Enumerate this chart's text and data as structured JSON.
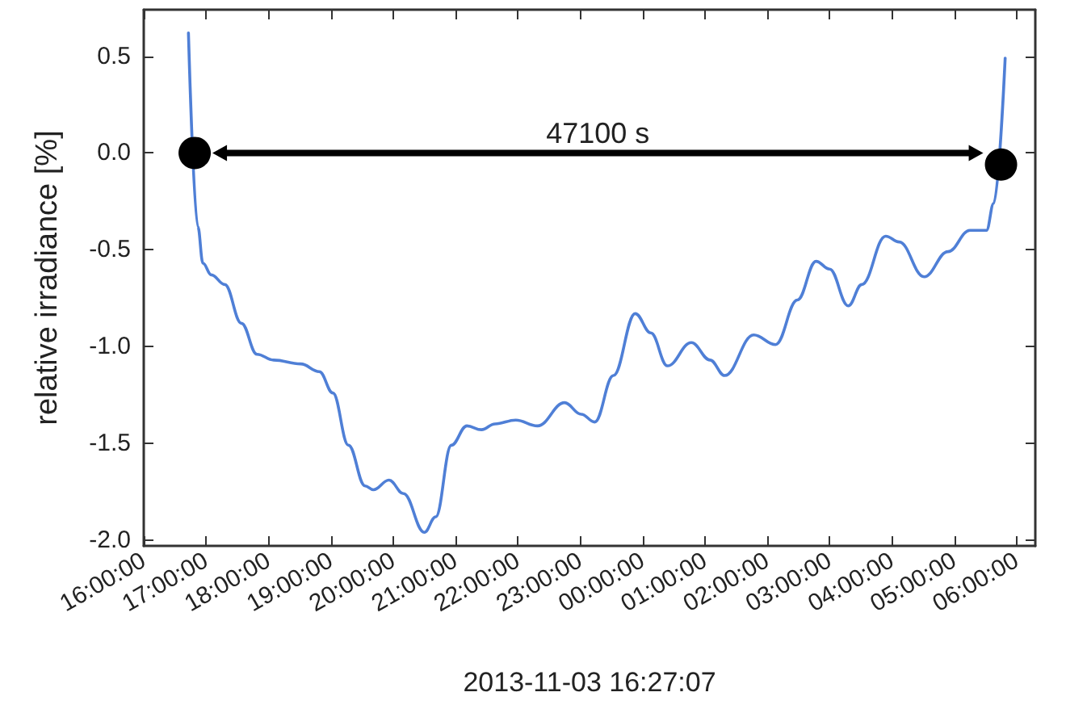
{
  "chart_data": {
    "type": "line",
    "xlabel": "2013-11-03 16:27:07",
    "ylabel": "relative irradiance [%]",
    "xlim": [
      "2013-11-03T16:00",
      "2013-11-04T06:18"
    ],
    "ylim": [
      -2.03,
      0.74
    ],
    "xticks": [
      {
        "value": "2013-11-03T16:00",
        "label": "16:00:00"
      },
      {
        "value": "2013-11-03T17:00",
        "label": "17:00:00"
      },
      {
        "value": "2013-11-03T18:00",
        "label": "18:00:00"
      },
      {
        "value": "2013-11-03T19:00",
        "label": "19:00:00"
      },
      {
        "value": "2013-11-03T20:00",
        "label": "20:00:00"
      },
      {
        "value": "2013-11-03T21:00",
        "label": "21:00:00"
      },
      {
        "value": "2013-11-03T22:00",
        "label": "22:00:00"
      },
      {
        "value": "2013-11-03T23:00",
        "label": "23:00:00"
      },
      {
        "value": "2013-11-04T00:00",
        "label": "00:00:00"
      },
      {
        "value": "2013-11-04T01:00",
        "label": "01:00:00"
      },
      {
        "value": "2013-11-04T02:00",
        "label": "02:00:00"
      },
      {
        "value": "2013-11-04T03:00",
        "label": "03:00:00"
      },
      {
        "value": "2013-11-04T04:00",
        "label": "04:00:00"
      },
      {
        "value": "2013-11-04T05:00",
        "label": "05:00:00"
      },
      {
        "value": "2013-11-04T06:00",
        "label": "06:00:00"
      }
    ],
    "yticks": [
      {
        "value": -2,
        "label": "-2.0"
      },
      {
        "value": -1.5,
        "label": "-1.5"
      },
      {
        "value": -1,
        "label": "-1.0"
      },
      {
        "value": -0.5,
        "label": "-0.5"
      },
      {
        "value": 0,
        "label": "0.0"
      },
      {
        "value": 0.5,
        "label": "0.5"
      }
    ],
    "series": [
      {
        "color": "#4f7fd6",
        "marker": "none",
        "line_style": "solid",
        "x": [
          "2013-11-03T16:43",
          "2013-11-03T16:52",
          "2013-11-03T16:57",
          "2013-11-03T17:05",
          "2013-11-03T17:18",
          "2013-11-03T17:34",
          "2013-11-03T17:49",
          "2013-11-03T18:05",
          "2013-11-03T18:31",
          "2013-11-03T18:49",
          "2013-11-03T19:02",
          "2013-11-03T19:17",
          "2013-11-03T19:33",
          "2013-11-03T19:41",
          "2013-11-03T19:56",
          "2013-11-03T20:10",
          "2013-11-03T20:30",
          "2013-11-03T20:41",
          "2013-11-03T20:56",
          "2013-11-03T21:11",
          "2013-11-03T21:25",
          "2013-11-03T21:38",
          "2013-11-03T21:58",
          "2013-11-03T22:19",
          "2013-11-03T22:45",
          "2013-11-03T23:01",
          "2013-11-03T23:14",
          "2013-11-03T23:32",
          "2013-11-03T23:53",
          "2013-11-04T00:08",
          "2013-11-04T00:24",
          "2013-11-04T00:47",
          "2013-11-04T01:05",
          "2013-11-04T01:19",
          "2013-11-04T01:47",
          "2013-11-04T02:08",
          "2013-11-04T02:29",
          "2013-11-04T02:47",
          "2013-11-04T03:00",
          "2013-11-04T03:18",
          "2013-11-04T03:31",
          "2013-11-04T03:54",
          "2013-11-04T04:07",
          "2013-11-04T04:31",
          "2013-11-04T04:54",
          "2013-11-04T05:15",
          "2013-11-04T05:31",
          "2013-11-04T05:38",
          "2013-11-04T05:49"
        ],
        "values": [
          0.62,
          -0.38,
          -0.57,
          -0.63,
          -0.68,
          -0.88,
          -1.04,
          -1.07,
          -1.09,
          -1.13,
          -1.24,
          -1.51,
          -1.72,
          -1.74,
          -1.69,
          -1.76,
          -1.96,
          -1.88,
          -1.51,
          -1.41,
          -1.43,
          -1.4,
          -1.38,
          -1.41,
          -1.29,
          -1.35,
          -1.39,
          -1.15,
          -0.83,
          -0.93,
          -1.1,
          -0.98,
          -1.07,
          -1.15,
          -0.94,
          -0.99,
          -0.76,
          -0.56,
          -0.6,
          -0.79,
          -0.68,
          -0.43,
          -0.46,
          -0.64,
          -0.51,
          -0.4,
          -0.4,
          -0.26,
          0.49
        ]
      },
      {
        "type": "scatter",
        "color": "#000000",
        "marker": "circle",
        "x": [
          "2013-11-03T16:49",
          "2013-11-04T05:45"
        ],
        "values": [
          0,
          -0.06
        ]
      }
    ],
    "annotations": [
      "47100 s"
    ]
  }
}
